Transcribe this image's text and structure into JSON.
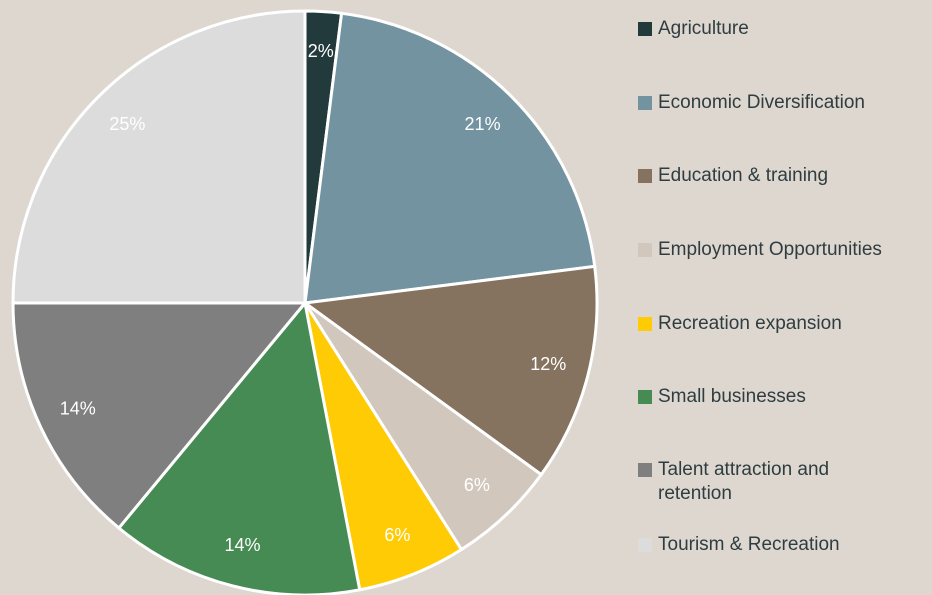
{
  "chart_data": {
    "type": "pie",
    "categories": [
      "Agriculture",
      "Economic Diversification",
      "Education & training",
      "Employment Opportunities",
      "Recreation expansion",
      "Small businesses",
      "Talent attraction and retention",
      "Tourism & Recreation"
    ],
    "values": [
      2,
      21,
      12,
      6,
      6,
      14,
      14,
      25
    ],
    "value_labels": [
      "2%",
      "21%",
      "12%",
      "6%",
      "6%",
      "14%",
      "14%",
      "25%"
    ],
    "colors": [
      "#233a3d",
      "#7393a0",
      "#85725f",
      "#d1c7bd",
      "#ffcb05",
      "#468b53",
      "#7f7f7f",
      "#dcdcdc"
    ],
    "legend": "right"
  }
}
